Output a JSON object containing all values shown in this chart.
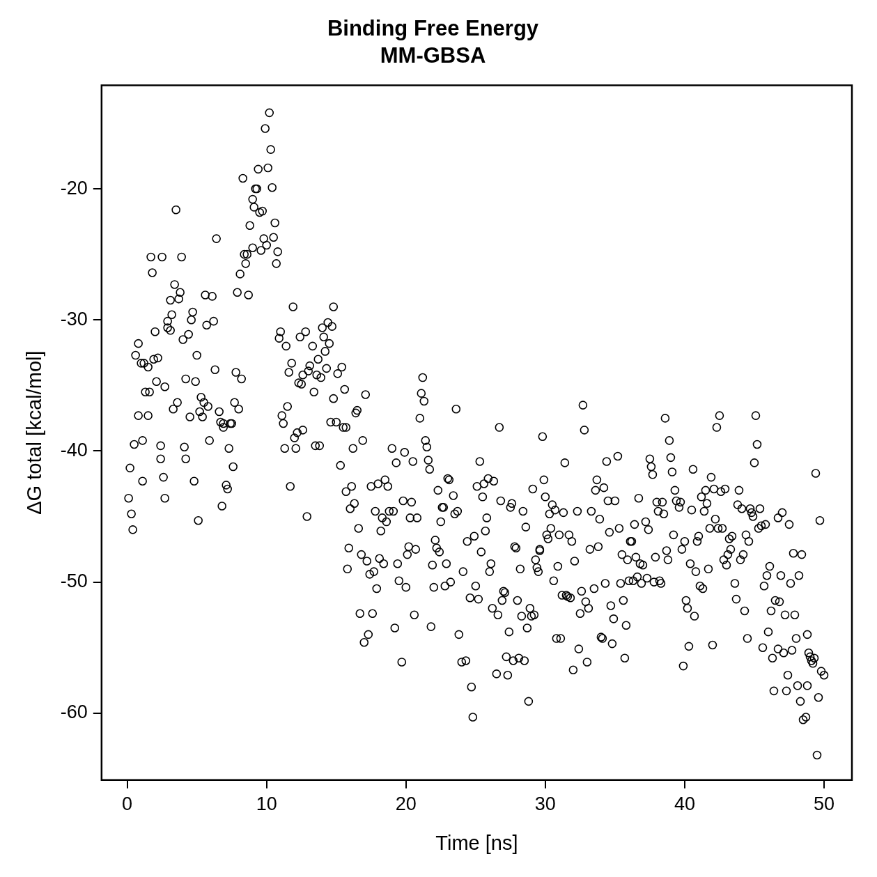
{
  "chart_data": {
    "type": "scatter",
    "title": "Binding Free Energy",
    "subtitle": "MM-GBSA",
    "xlabel": "Time [ns]",
    "ylabel": "ΔG total [kcal/mol]",
    "xlim": [
      -1.84,
      52
    ],
    "ylim": [
      -65.1,
      -12.1
    ],
    "xticks": [
      0,
      10,
      20,
      30,
      40,
      50
    ],
    "yticks": [
      -60,
      -50,
      -40,
      -30,
      -20
    ],
    "grid": false,
    "legend": false,
    "marker": "circle",
    "series": [
      {
        "color": "#000000",
        "x": [
          0.1,
          0.2,
          0.3,
          0.4,
          0.5,
          0.6,
          0.8,
          0.8,
          1.0,
          1.1,
          1.1,
          1.2,
          1.3,
          1.5,
          1.5,
          1.6,
          1.7,
          1.8,
          1.9,
          2.0,
          2.1,
          2.2,
          2.4,
          2.4,
          2.5,
          2.6,
          2.7,
          2.7,
          2.9,
          2.9,
          3.1,
          3.1,
          3.2,
          3.3,
          3.4,
          3.5,
          3.6,
          3.7,
          3.8,
          3.9,
          4.0,
          4.1,
          4.2,
          4.2,
          4.4,
          4.5,
          4.6,
          4.7,
          4.8,
          4.9,
          5.0,
          5.1,
          5.2,
          5.3,
          5.4,
          5.5,
          5.6,
          5.7,
          5.8,
          5.9,
          6.1,
          6.2,
          6.3,
          6.4,
          6.6,
          6.7,
          6.8,
          6.9,
          6.9,
          7.1,
          7.2,
          7.3,
          7.4,
          7.5,
          7.6,
          7.7,
          7.8,
          7.9,
          8.0,
          8.1,
          8.2,
          8.3,
          8.4,
          8.5,
          8.6,
          8.7,
          8.8,
          9.0,
          9.0,
          9.1,
          9.2,
          9.3,
          9.4,
          9.5,
          9.6,
          9.7,
          9.8,
          9.9,
          10.0,
          10.1,
          10.2,
          10.3,
          10.4,
          10.5,
          10.6,
          10.7,
          10.8,
          10.9,
          11.0,
          11.1,
          11.2,
          11.3,
          11.4,
          11.5,
          11.6,
          11.7,
          11.8,
          11.9,
          12.0,
          12.1,
          12.2,
          12.3,
          12.4,
          12.5,
          12.6,
          12.6,
          12.8,
          12.9,
          13.0,
          13.1,
          13.3,
          13.4,
          13.5,
          13.6,
          13.7,
          13.8,
          13.9,
          14.0,
          14.1,
          14.2,
          14.3,
          14.4,
          14.5,
          14.6,
          14.7,
          14.8,
          14.8,
          15.0,
          15.1,
          15.3,
          15.4,
          15.5,
          15.6,
          15.7,
          15.7,
          15.8,
          15.9,
          16.0,
          16.1,
          16.2,
          16.3,
          16.4,
          16.5,
          16.6,
          16.7,
          16.8,
          16.9,
          17.0,
          17.1,
          17.2,
          17.3,
          17.4,
          17.5,
          17.6,
          17.7,
          17.8,
          17.9,
          18.0,
          18.1,
          18.2,
          18.3,
          18.4,
          18.5,
          18.6,
          18.7,
          18.8,
          19.0,
          19.1,
          19.2,
          19.3,
          19.4,
          19.5,
          19.7,
          19.8,
          19.9,
          20.0,
          20.1,
          20.2,
          20.3,
          20.4,
          20.5,
          20.6,
          20.7,
          20.8,
          21.0,
          21.1,
          21.2,
          21.3,
          21.4,
          21.5,
          21.6,
          21.7,
          21.8,
          21.9,
          22.0,
          22.1,
          22.2,
          22.3,
          22.4,
          22.5,
          22.6,
          22.7,
          22.8,
          22.9,
          23.0,
          23.1,
          23.2,
          23.4,
          23.5,
          23.6,
          23.7,
          23.8,
          24.0,
          24.1,
          24.3,
          24.4,
          24.6,
          24.7,
          24.8,
          24.9,
          25.0,
          25.1,
          25.2,
          25.3,
          25.4,
          25.5,
          25.6,
          25.7,
          25.8,
          25.9,
          26.0,
          26.1,
          26.2,
          26.3,
          26.5,
          26.6,
          26.7,
          26.8,
          26.9,
          27.0,
          27.1,
          27.2,
          27.3,
          27.4,
          27.5,
          27.6,
          27.7,
          27.8,
          27.9,
          28.0,
          28.1,
          28.2,
          28.3,
          28.4,
          28.5,
          28.6,
          28.7,
          28.8,
          28.9,
          29.0,
          29.1,
          29.2,
          29.3,
          29.4,
          29.5,
          29.6,
          29.6,
          29.8,
          29.9,
          30.0,
          30.1,
          30.2,
          30.3,
          30.4,
          30.5,
          30.6,
          30.7,
          30.8,
          30.9,
          31.0,
          31.1,
          31.2,
          31.3,
          31.4,
          31.5,
          31.6,
          31.7,
          31.8,
          31.9,
          32.0,
          32.1,
          32.3,
          32.4,
          32.5,
          32.6,
          32.7,
          32.8,
          32.9,
          33.0,
          33.1,
          33.2,
          33.3,
          33.5,
          33.6,
          33.7,
          33.8,
          33.9,
          34.0,
          34.1,
          34.2,
          34.3,
          34.4,
          34.5,
          34.6,
          34.7,
          34.8,
          34.9,
          35.0,
          35.2,
          35.3,
          35.4,
          35.5,
          35.6,
          35.7,
          35.8,
          35.9,
          36.0,
          36.1,
          36.2,
          36.3,
          36.4,
          36.5,
          36.6,
          36.7,
          36.8,
          36.9,
          37.0,
          37.2,
          37.3,
          37.4,
          37.5,
          37.6,
          37.7,
          37.8,
          37.9,
          38.0,
          38.1,
          38.2,
          38.3,
          38.4,
          38.5,
          38.6,
          38.7,
          38.8,
          38.9,
          39.0,
          39.1,
          39.2,
          39.3,
          39.4,
          39.6,
          39.7,
          39.8,
          39.9,
          40.0,
          40.1,
          40.2,
          40.3,
          40.4,
          40.5,
          40.6,
          40.7,
          40.8,
          40.9,
          41.0,
          41.1,
          41.2,
          41.3,
          41.4,
          41.5,
          41.6,
          41.7,
          41.8,
          41.9,
          42.0,
          42.1,
          42.2,
          42.3,
          42.4,
          42.5,
          42.6,
          42.7,
          42.8,
          42.9,
          43.0,
          43.1,
          43.2,
          43.3,
          43.4,
          43.6,
          43.7,
          43.8,
          43.9,
          44.0,
          44.1,
          44.2,
          44.3,
          44.4,
          44.5,
          44.6,
          44.7,
          44.8,
          44.9,
          45.0,
          45.1,
          45.2,
          45.3,
          45.4,
          45.5,
          45.6,
          45.7,
          45.8,
          45.9,
          46.0,
          46.1,
          46.2,
          46.3,
          46.4,
          46.5,
          46.7,
          46.7,
          46.8,
          46.9,
          47.0,
          47.1,
          47.2,
          47.3,
          47.4,
          47.5,
          47.6,
          47.7,
          47.8,
          47.9,
          48.0,
          48.1,
          48.2,
          48.3,
          48.4,
          48.5,
          48.7,
          48.8,
          48.9,
          49.0,
          49.1,
          49.2,
          49.3,
          49.4,
          49.5,
          49.6,
          49.7,
          49.8,
          50.0,
          48.8
        ],
        "values": [
          -43.6,
          -41.3,
          -44.8,
          -46.0,
          -39.5,
          -32.7,
          -37.3,
          -31.8,
          -33.3,
          -39.2,
          -42.3,
          -33.3,
          -35.5,
          -37.3,
          -33.6,
          -35.5,
          -25.2,
          -26.4,
          -33.0,
          -30.9,
          -34.7,
          -32.9,
          -39.6,
          -40.6,
          -25.2,
          -42.0,
          -43.6,
          -35.1,
          -30.1,
          -30.6,
          -28.5,
          -30.8,
          -29.6,
          -36.8,
          -27.3,
          -21.6,
          -36.3,
          -28.4,
          -27.9,
          -25.2,
          -31.5,
          -39.7,
          -34.5,
          -40.6,
          -31.1,
          -37.4,
          -30.0,
          -29.4,
          -42.3,
          -34.7,
          -32.7,
          -45.3,
          -37.0,
          -35.9,
          -37.4,
          -36.3,
          -28.1,
          -30.4,
          -36.6,
          -39.2,
          -28.2,
          -30.1,
          -33.8,
          -23.8,
          -37.0,
          -37.8,
          -44.2,
          -37.9,
          -38.2,
          -42.6,
          -42.9,
          -39.8,
          -37.9,
          -37.9,
          -41.2,
          -36.3,
          -34.0,
          -27.9,
          -36.8,
          -26.5,
          -34.5,
          -19.2,
          -25.0,
          -25.7,
          -25.0,
          -28.1,
          -22.8,
          -24.5,
          -20.8,
          -21.4,
          -20.0,
          -20.0,
          -18.5,
          -21.8,
          -24.7,
          -21.7,
          -23.8,
          -15.4,
          -24.3,
          -18.4,
          -14.2,
          -17.0,
          -19.9,
          -23.7,
          -22.6,
          -25.7,
          -24.8,
          -31.4,
          -30.9,
          -37.3,
          -37.9,
          -39.8,
          -32.0,
          -36.6,
          -34.0,
          -42.7,
          -33.3,
          -29.0,
          -39.0,
          -39.8,
          -38.6,
          -34.8,
          -31.3,
          -34.9,
          -34.2,
          -38.4,
          -30.9,
          -45.0,
          -33.9,
          -33.5,
          -32.0,
          -35.5,
          -39.6,
          -34.2,
          -33.0,
          -39.6,
          -34.4,
          -30.6,
          -31.3,
          -32.4,
          -33.7,
          -30.2,
          -31.8,
          -37.8,
          -30.5,
          -29.0,
          -36.0,
          -37.8,
          -34.1,
          -41.1,
          -33.6,
          -38.2,
          -35.3,
          -38.2,
          -43.1,
          -49.0,
          -47.4,
          -44.4,
          -42.7,
          -39.8,
          -44.0,
          -37.1,
          -36.9,
          -45.9,
          -52.4,
          -47.9,
          -39.2,
          -54.6,
          -35.7,
          -48.4,
          -54.0,
          -49.4,
          -42.7,
          -52.4,
          -49.2,
          -44.6,
          -50.5,
          -42.5,
          -48.2,
          -46.1,
          -45.1,
          -48.6,
          -42.2,
          -45.4,
          -42.7,
          -44.6,
          -39.8,
          -44.6,
          -53.5,
          -40.9,
          -48.6,
          -49.9,
          -56.1,
          -43.8,
          -40.1,
          -50.4,
          -47.9,
          -47.3,
          -45.1,
          -43.9,
          -40.8,
          -52.5,
          -47.5,
          -45.1,
          -37.5,
          -35.6,
          -34.4,
          -36.2,
          -39.2,
          -39.7,
          -40.7,
          -41.4,
          -53.4,
          -48.7,
          -50.4,
          -46.8,
          -47.4,
          -43.0,
          -47.7,
          -45.4,
          -44.3,
          -44.3,
          -50.3,
          -48.6,
          -42.1,
          -42.2,
          -50.0,
          -43.4,
          -44.8,
          -36.8,
          -44.6,
          -54.0,
          -56.1,
          -49.2,
          -56.0,
          -46.9,
          -51.2,
          -58.0,
          -60.3,
          -46.5,
          -50.3,
          -42.7,
          -51.3,
          -40.8,
          -47.7,
          -43.5,
          -42.5,
          -46.1,
          -45.1,
          -42.1,
          -49.2,
          -48.6,
          -52.0,
          -42.3,
          -57.0,
          -52.5,
          -38.2,
          -43.8,
          -51.4,
          -50.7,
          -50.8,
          -55.7,
          -57.1,
          -53.8,
          -44.3,
          -44.0,
          -56.0,
          -47.3,
          -47.4,
          -51.4,
          -55.8,
          -49.0,
          -52.6,
          -44.6,
          -56.0,
          -45.8,
          -53.5,
          -59.1,
          -52.0,
          -52.6,
          -42.9,
          -52.5,
          -48.3,
          -48.9,
          -49.2,
          -47.5,
          -47.6,
          -38.9,
          -42.2,
          -43.5,
          -46.4,
          -46.7,
          -44.8,
          -45.9,
          -44.1,
          -49.9,
          -44.5,
          -54.3,
          -48.8,
          -46.4,
          -54.3,
          -51.0,
          -44.7,
          -40.9,
          -51.0,
          -51.1,
          -46.4,
          -51.2,
          -46.9,
          -56.7,
          -48.4,
          -44.6,
          -55.1,
          -52.4,
          -50.7,
          -36.5,
          -38.4,
          -51.5,
          -56.1,
          -52.0,
          -47.5,
          -44.6,
          -50.5,
          -43.0,
          -42.2,
          -47.3,
          -45.2,
          -54.2,
          -54.3,
          -42.8,
          -50.1,
          -40.8,
          -43.8,
          -46.2,
          -51.8,
          -54.7,
          -52.8,
          -43.8,
          -40.4,
          -45.9,
          -50.1,
          -47.9,
          -51.4,
          -55.8,
          -53.3,
          -48.3,
          -49.9,
          -46.9,
          -46.9,
          -49.9,
          -45.6,
          -48.1,
          -49.6,
          -43.6,
          -48.6,
          -50.1,
          -48.7,
          -45.4,
          -49.7,
          -46.0,
          -40.6,
          -41.2,
          -41.8,
          -50.0,
          -48.1,
          -43.9,
          -44.6,
          -49.9,
          -50.1,
          -43.9,
          -44.8,
          -37.5,
          -47.6,
          -48.3,
          -39.2,
          -40.5,
          -41.6,
          -46.4,
          -43.0,
          -43.8,
          -44.3,
          -43.9,
          -47.5,
          -56.4,
          -46.9,
          -51.4,
          -52.0,
          -54.9,
          -48.6,
          -44.5,
          -41.4,
          -52.6,
          -49.2,
          -46.9,
          -46.5,
          -50.3,
          -43.5,
          -50.5,
          -44.6,
          -43.0,
          -44.0,
          -49.0,
          -45.9,
          -42.0,
          -54.8,
          -42.9,
          -45.2,
          -38.2,
          -45.9,
          -37.3,
          -43.1,
          -45.9,
          -48.3,
          -42.9,
          -48.7,
          -47.9,
          -46.7,
          -47.5,
          -46.5,
          -50.1,
          -51.3,
          -44.1,
          -43.0,
          -48.3,
          -44.4,
          -47.9,
          -52.2,
          -46.4,
          -54.3,
          -46.9,
          -44.4,
          -44.7,
          -45.0,
          -40.9,
          -37.3,
          -39.5,
          -45.9,
          -44.4,
          -45.7,
          -55.0,
          -50.3,
          -45.6,
          -49.5,
          -53.8,
          -48.8,
          -52.2,
          -55.8,
          -58.3,
          -51.4,
          -45.1,
          -55.1,
          -51.5,
          -49.5,
          -44.7,
          -55.4,
          -52.5,
          -58.3,
          -57.1,
          -45.6,
          -50.1,
          -55.2,
          -47.8,
          -52.5,
          -54.3,
          -57.9,
          -49.5,
          -59.1,
          -47.9,
          -60.5,
          -60.3,
          -54.0,
          -55.4,
          -55.7,
          -56.0,
          -56.2,
          -55.8,
          -41.7,
          -63.2,
          -58.8,
          -45.3,
          -56.8,
          -57.1,
          -57.9
        ]
      }
    ]
  }
}
